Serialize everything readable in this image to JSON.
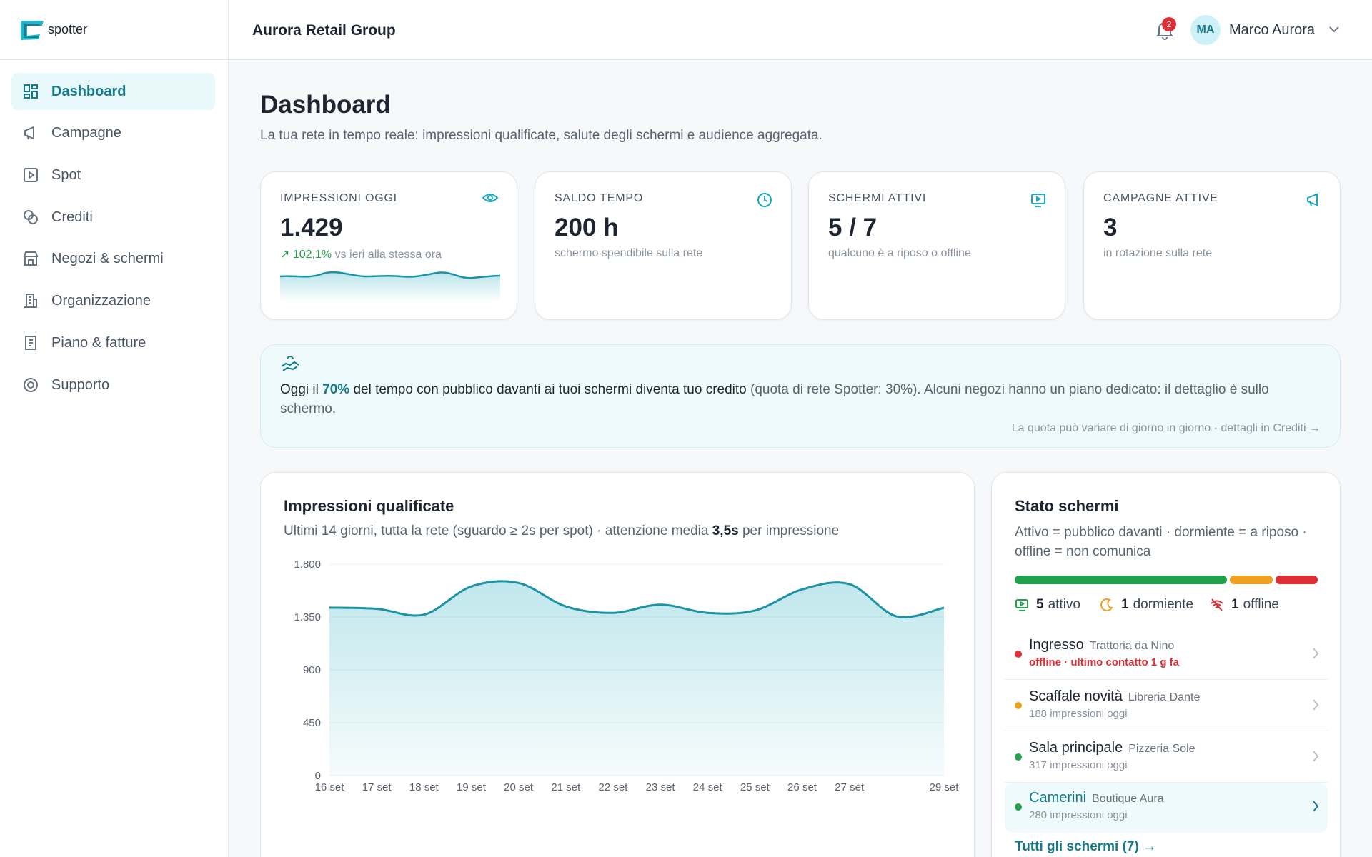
{
  "sidebar": {
    "brand": "spotter",
    "nav": [
      "Dashboard",
      "Campagne",
      "Spot",
      "Crediti",
      "Negozi & schermi",
      "Organizzazione",
      "Piano & fatture",
      "Supporto"
    ]
  },
  "header": {
    "org": "Aurora Retail Group",
    "notifications": 2,
    "avatar": "MA",
    "user": "Marco Aurora"
  },
  "page": {
    "title": "Dashboard",
    "subtitle": "La tua rete in tempo reale: impressioni qualificate, salute degli schermi e audience aggregata."
  },
  "kpis": [
    {
      "label": "IMPRESSIONI OGGI",
      "value": "1.429",
      "delta": "102,1%",
      "note": "vs ieri alla stessa ora"
    },
    {
      "label": "SALDO TEMPO",
      "value": "200 h",
      "note": "schermo spendibile sulla rete"
    },
    {
      "label": "SCHERMI ATTIVI",
      "value": "5 / 7",
      "note": "qualcuno è a riposo o offline"
    },
    {
      "label": "CAMPAGNE ATTIVE",
      "value": "3",
      "note": "in rotazione sulla rete"
    }
  ],
  "banner": {
    "lead": "Oggi il ",
    "highlight": "70%",
    "mid": " del tempo con pubblico davanti ai tuoi schermi diventa tuo credito",
    "rest": " (quota di rete Spotter: 30%). Alcuni negozi hanno un piano dedicato: il dettaglio è sullo schermo.",
    "footnote": "La quota può variare di giorno in giorno · dettagli in Crediti →"
  },
  "chart_data": {
    "type": "area",
    "title": "Impressioni qualificate",
    "subtitle": "Ultimi 14 giorni, tutta la rete (sguardo ≥ 2s per spot) · attenzione media ",
    "subtitle_emphasis": "3,5s",
    "subtitle_end": " per impressione",
    "categories": [
      "16 set",
      "17 set",
      "18 set",
      "19 set",
      "20 set",
      "21 set",
      "22 set",
      "23 set",
      "24 set",
      "25 set",
      "26 set",
      "27 set",
      null,
      "29 set"
    ],
    "series": [
      {
        "name": "Impressioni qualificate",
        "color": "#1b93a4",
        "values": [
          1430,
          1420,
          1370,
          1610,
          1640,
          1440,
          1385,
          1455,
          1385,
          1405,
          1585,
          1630,
          1355,
          1429
        ]
      }
    ],
    "ylim": [
      0,
      1800
    ],
    "yticks": [
      0,
      450,
      900,
      {
        "value": 1350,
        "label": "1.350"
      },
      {
        "value": 1800,
        "label": "1.800"
      }
    ],
    "grid": true
  },
  "status": {
    "title": "Stato schermi",
    "subtitle": "Attivo = pubblico davanti · dormiente = a riposo · offline = non comunica",
    "counts": [
      {
        "name": "attivo",
        "value": 5,
        "color": "#22a04b"
      },
      {
        "name": "dormiente",
        "value": 1,
        "color": "#f0a020"
      },
      {
        "name": "offline",
        "value": 1,
        "color": "#dc2f35"
      }
    ],
    "screens": [
      {
        "name": "Ingresso",
        "store": "Trattoria da Nino",
        "detail": "offline · ultimo contatto 1 g fa",
        "color": "#dc2f35"
      },
      {
        "name": "Scaffale novità",
        "store": "Libreria Dante",
        "detail": "188 impressioni oggi",
        "color": "#f0a020"
      },
      {
        "name": "Sala principale",
        "store": "Pizzeria Sole",
        "detail": "317 impressioni oggi",
        "color": "#22a04b"
      },
      {
        "name": "Camerini",
        "store": "Boutique Aura",
        "detail": "280 impressioni oggi",
        "color": "#22a04b"
      }
    ],
    "link": "Tutti gli schermi (7) →"
  }
}
